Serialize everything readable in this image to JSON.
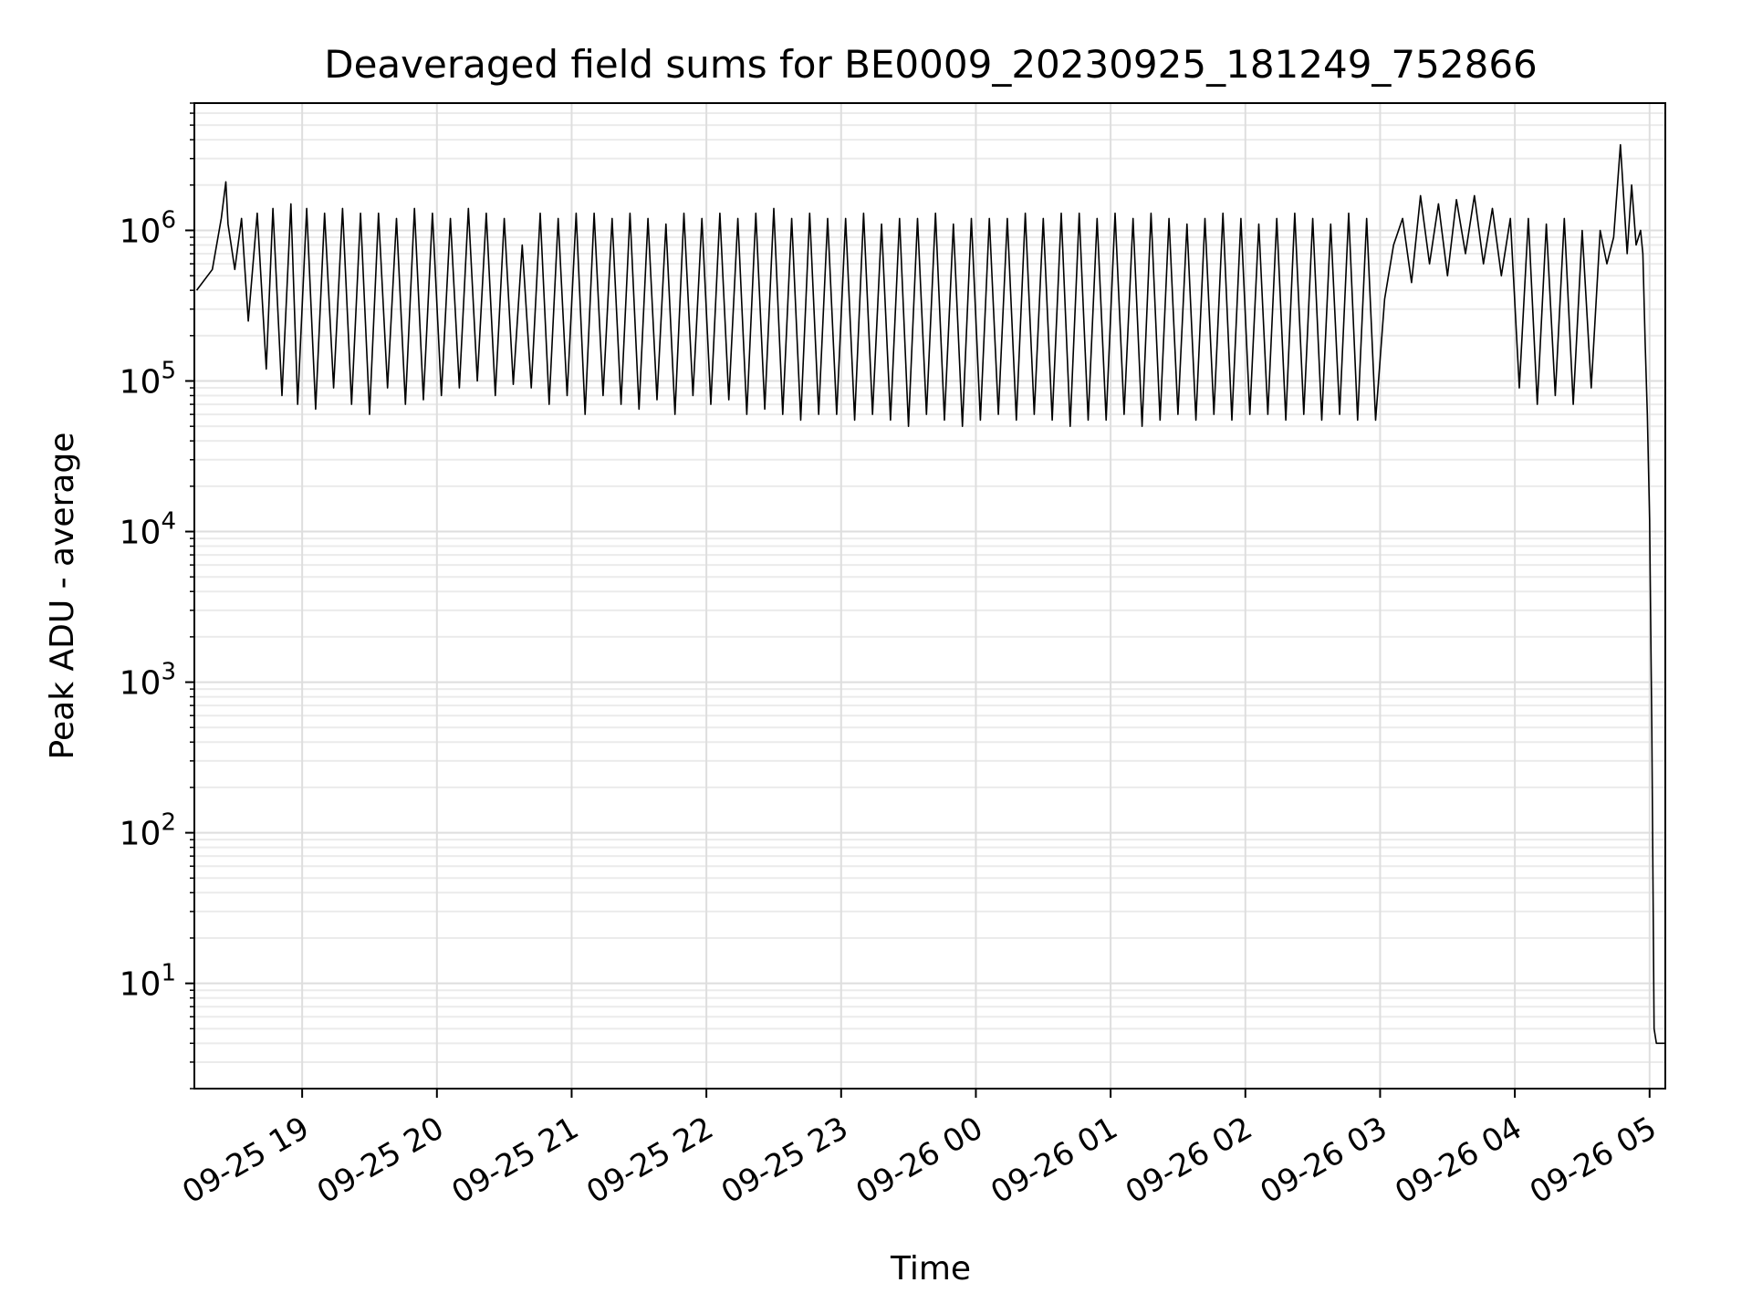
{
  "chart_data": {
    "type": "line",
    "title": "Deaveraged field sums for BE0009_20230925_181249_752866",
    "xlabel": "Time",
    "ylabel": "Peak ADU - average",
    "x_is_datetime": true,
    "xlim": [
      "2023-09-25 18:12",
      "2023-09-26 05:07"
    ],
    "ylim": [
      2,
      7000000
    ],
    "yscale": "log",
    "grid": true,
    "grid_minor": true,
    "legend": "none",
    "line_color": "#000000",
    "x_ticks": [
      {
        "value": "2023-09-25 19:00",
        "label": "09-25 19"
      },
      {
        "value": "2023-09-25 20:00",
        "label": "09-25 20"
      },
      {
        "value": "2023-09-25 21:00",
        "label": "09-25 21"
      },
      {
        "value": "2023-09-25 22:00",
        "label": "09-25 22"
      },
      {
        "value": "2023-09-25 23:00",
        "label": "09-25 23"
      },
      {
        "value": "2023-09-26 00:00",
        "label": "09-26 00"
      },
      {
        "value": "2023-09-26 01:00",
        "label": "09-26 01"
      },
      {
        "value": "2023-09-26 02:00",
        "label": "09-26 02"
      },
      {
        "value": "2023-09-26 03:00",
        "label": "09-26 03"
      },
      {
        "value": "2023-09-26 04:00",
        "label": "09-26 04"
      },
      {
        "value": "2023-09-26 05:00",
        "label": "09-26 05"
      }
    ],
    "y_ticks": [
      {
        "value": 10,
        "base": "10",
        "exp": "1"
      },
      {
        "value": 100,
        "base": "10",
        "exp": "2"
      },
      {
        "value": 1000,
        "base": "10",
        "exp": "3"
      },
      {
        "value": 10000,
        "base": "10",
        "exp": "4"
      },
      {
        "value": 100000,
        "base": "10",
        "exp": "5"
      },
      {
        "value": 1000000,
        "base": "10",
        "exp": "6"
      }
    ],
    "series": [
      {
        "x": [
          "2023-09-25 18:13",
          "2023-09-25 18:20",
          "2023-09-25 18:24",
          "2023-09-25 18:26",
          "2023-09-25 18:27",
          "2023-09-25 18:30",
          "2023-09-25 18:33",
          "2023-09-25 18:36",
          "2023-09-25 18:40",
          "2023-09-25 18:44",
          "2023-09-25 18:47",
          "2023-09-25 18:51",
          "2023-09-25 18:55",
          "2023-09-25 18:58",
          "2023-09-25 19:02",
          "2023-09-25 19:06",
          "2023-09-25 19:10",
          "2023-09-25 19:14",
          "2023-09-25 19:18",
          "2023-09-25 19:22",
          "2023-09-25 19:26",
          "2023-09-25 19:30",
          "2023-09-25 19:34",
          "2023-09-25 19:38",
          "2023-09-25 19:42",
          "2023-09-25 19:46",
          "2023-09-25 19:50",
          "2023-09-25 19:54",
          "2023-09-25 19:58",
          "2023-09-25 20:02",
          "2023-09-25 20:06",
          "2023-09-25 20:10",
          "2023-09-25 20:14",
          "2023-09-25 20:18",
          "2023-09-25 20:22",
          "2023-09-25 20:26",
          "2023-09-25 20:30",
          "2023-09-25 20:34",
          "2023-09-25 20:38",
          "2023-09-25 20:42",
          "2023-09-25 20:46",
          "2023-09-25 20:50",
          "2023-09-25 20:54",
          "2023-09-25 20:58",
          "2023-09-25 21:02",
          "2023-09-25 21:06",
          "2023-09-25 21:10",
          "2023-09-25 21:14",
          "2023-09-25 21:18",
          "2023-09-25 21:22",
          "2023-09-25 21:26",
          "2023-09-25 21:30",
          "2023-09-25 21:34",
          "2023-09-25 21:38",
          "2023-09-25 21:42",
          "2023-09-25 21:46",
          "2023-09-25 21:50",
          "2023-09-25 21:54",
          "2023-09-25 21:58",
          "2023-09-25 22:02",
          "2023-09-25 22:06",
          "2023-09-25 22:10",
          "2023-09-25 22:14",
          "2023-09-25 22:18",
          "2023-09-25 22:22",
          "2023-09-25 22:26",
          "2023-09-25 22:30",
          "2023-09-25 22:34",
          "2023-09-25 22:38",
          "2023-09-25 22:42",
          "2023-09-25 22:46",
          "2023-09-25 22:50",
          "2023-09-25 22:54",
          "2023-09-25 22:58",
          "2023-09-25 23:02",
          "2023-09-25 23:06",
          "2023-09-25 23:10",
          "2023-09-25 23:14",
          "2023-09-25 23:18",
          "2023-09-25 23:22",
          "2023-09-25 23:26",
          "2023-09-25 23:30",
          "2023-09-25 23:34",
          "2023-09-25 23:38",
          "2023-09-25 23:42",
          "2023-09-25 23:46",
          "2023-09-25 23:50",
          "2023-09-25 23:54",
          "2023-09-25 23:58",
          "2023-09-26 00:02",
          "2023-09-26 00:06",
          "2023-09-26 00:10",
          "2023-09-26 00:14",
          "2023-09-26 00:18",
          "2023-09-26 00:22",
          "2023-09-26 00:26",
          "2023-09-26 00:30",
          "2023-09-26 00:34",
          "2023-09-26 00:38",
          "2023-09-26 00:42",
          "2023-09-26 00:46",
          "2023-09-26 00:50",
          "2023-09-26 00:54",
          "2023-09-26 00:58",
          "2023-09-26 01:02",
          "2023-09-26 01:06",
          "2023-09-26 01:10",
          "2023-09-26 01:14",
          "2023-09-26 01:18",
          "2023-09-26 01:22",
          "2023-09-26 01:26",
          "2023-09-26 01:30",
          "2023-09-26 01:34",
          "2023-09-26 01:38",
          "2023-09-26 01:42",
          "2023-09-26 01:46",
          "2023-09-26 01:50",
          "2023-09-26 01:54",
          "2023-09-26 01:58",
          "2023-09-26 02:02",
          "2023-09-26 02:06",
          "2023-09-26 02:10",
          "2023-09-26 02:14",
          "2023-09-26 02:18",
          "2023-09-26 02:22",
          "2023-09-26 02:26",
          "2023-09-26 02:30",
          "2023-09-26 02:34",
          "2023-09-26 02:38",
          "2023-09-26 02:42",
          "2023-09-26 02:46",
          "2023-09-26 02:50",
          "2023-09-26 02:54",
          "2023-09-26 02:58",
          "2023-09-26 03:02",
          "2023-09-26 03:06",
          "2023-09-26 03:10",
          "2023-09-26 03:14",
          "2023-09-26 03:18",
          "2023-09-26 03:22",
          "2023-09-26 03:26",
          "2023-09-26 03:30",
          "2023-09-26 03:34",
          "2023-09-26 03:38",
          "2023-09-26 03:42",
          "2023-09-26 03:46",
          "2023-09-26 03:50",
          "2023-09-26 03:54",
          "2023-09-26 03:58",
          "2023-09-26 04:02",
          "2023-09-26 04:06",
          "2023-09-26 04:10",
          "2023-09-26 04:14",
          "2023-09-26 04:18",
          "2023-09-26 04:22",
          "2023-09-26 04:26",
          "2023-09-26 04:30",
          "2023-09-26 04:34",
          "2023-09-26 04:38",
          "2023-09-26 04:41",
          "2023-09-26 04:44",
          "2023-09-26 04:47",
          "2023-09-26 04:50",
          "2023-09-26 04:52",
          "2023-09-26 04:54",
          "2023-09-26 04:56",
          "2023-09-26 04:57",
          "2023-09-26 04:58",
          "2023-09-26 04:59",
          "2023-09-26 05:00",
          "2023-09-26 05:01",
          "2023-09-26 05:02",
          "2023-09-26 05:03",
          "2023-09-26 05:05",
          "2023-09-26 05:07"
        ],
        "values": [
          400000,
          550000,
          1200000,
          2100000,
          1100000,
          550000,
          1200000,
          250000,
          1300000,
          120000,
          1400000,
          80000,
          1500000,
          70000,
          1400000,
          65000,
          1300000,
          90000,
          1400000,
          70000,
          1300000,
          60000,
          1300000,
          90000,
          1200000,
          70000,
          1400000,
          75000,
          1300000,
          80000,
          1200000,
          90000,
          1400000,
          100000,
          1300000,
          80000,
          1200000,
          95000,
          800000,
          90000,
          1300000,
          70000,
          1200000,
          80000,
          1300000,
          60000,
          1300000,
          80000,
          1200000,
          70000,
          1300000,
          65000,
          1200000,
          75000,
          1100000,
          60000,
          1300000,
          80000,
          1200000,
          70000,
          1300000,
          75000,
          1200000,
          60000,
          1300000,
          65000,
          1400000,
          60000,
          1200000,
          55000,
          1300000,
          60000,
          1200000,
          60000,
          1200000,
          55000,
          1300000,
          60000,
          1100000,
          55000,
          1200000,
          50000,
          1200000,
          60000,
          1300000,
          55000,
          1100000,
          50000,
          1200000,
          55000,
          1200000,
          60000,
          1200000,
          55000,
          1300000,
          60000,
          1200000,
          55000,
          1300000,
          50000,
          1300000,
          55000,
          1200000,
          55000,
          1300000,
          60000,
          1200000,
          50000,
          1300000,
          55000,
          1200000,
          60000,
          1100000,
          55000,
          1200000,
          60000,
          1300000,
          55000,
          1200000,
          60000,
          1100000,
          60000,
          1200000,
          55000,
          1300000,
          60000,
          1200000,
          55000,
          1100000,
          60000,
          1300000,
          55000,
          1200000,
          55000,
          350000,
          800000,
          1200000,
          450000,
          1700000,
          600000,
          1500000,
          500000,
          1600000,
          700000,
          1700000,
          600000,
          1400000,
          500000,
          1200000,
          90000,
          1200000,
          70000,
          1100000,
          80000,
          1200000,
          70000,
          1000000,
          90000,
          1000000,
          600000,
          900000,
          3700000,
          700000,
          2000000,
          800000,
          1000000,
          700000,
          180000,
          60000,
          12000,
          500,
          5,
          4,
          4,
          4
        ]
      }
    ]
  }
}
